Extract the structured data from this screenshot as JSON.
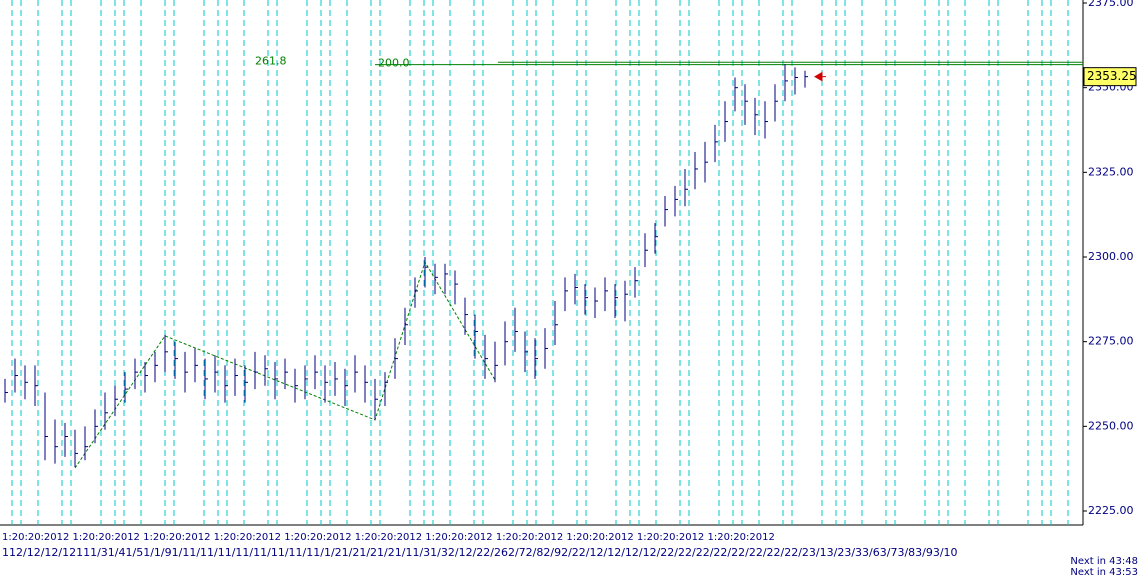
{
  "chart_data": {
    "type": "ohlc",
    "color": "#000080",
    "ylim": [
      2225,
      2375
    ],
    "yticks": [
      {
        "value": 2225,
        "label": "2225.00"
      },
      {
        "value": 2250,
        "label": "2250.00"
      },
      {
        "value": 2275,
        "label": "2275.00"
      },
      {
        "value": 2300,
        "label": "2300.00"
      },
      {
        "value": 2325,
        "label": "2325.00"
      },
      {
        "value": 2350,
        "label": "2350.00"
      },
      {
        "value": 2375,
        "label": "2375.00"
      }
    ],
    "close": [
      2260,
      2265,
      2263,
      2262,
      2247,
      2244,
      2247,
      2242,
      2244,
      2250,
      2254,
      2258,
      2261,
      2266,
      2265,
      2268,
      2272,
      2270,
      2266,
      2268,
      2264,
      2266,
      2262,
      2265,
      2263,
      2266,
      2267,
      2264,
      2266,
      2262,
      2264,
      2266,
      2263,
      2264,
      2262,
      2266,
      2263,
      2258,
      2263,
      2270,
      2280,
      2290,
      2297,
      2294,
      2295,
      2292,
      2283,
      2278,
      2270,
      2268,
      2275,
      2278,
      2272,
      2270,
      2273,
      2280,
      2290,
      2291,
      2288,
      2287,
      2290,
      2288,
      2289,
      2293,
      2302,
      2306,
      2314,
      2317,
      2320,
      2326,
      2328,
      2334,
      2340,
      2350,
      2346,
      2342,
      2340,
      2346,
      2352,
      2353,
      2353.25
    ],
    "high": [
      2264,
      2270,
      2268,
      2268,
      2260,
      2252,
      2251,
      2249,
      2250,
      2255,
      2260,
      2262,
      2266,
      2270,
      2269,
      2272,
      2277,
      2275,
      2272,
      2273,
      2270,
      2271,
      2268,
      2270,
      2268,
      2272,
      2271,
      2269,
      2270,
      2267,
      2268,
      2271,
      2268,
      2269,
      2267,
      2271,
      2268,
      2264,
      2266,
      2276,
      2285,
      2294,
      2300,
      2298,
      2298,
      2296,
      2288,
      2283,
      2277,
      2275,
      2281,
      2285,
      2278,
      2276,
      2279,
      2287,
      2294,
      2295,
      2292,
      2291,
      2294,
      2292,
      2293,
      2297,
      2307,
      2310,
      2318,
      2321,
      2326,
      2331,
      2334,
      2339,
      2346,
      2353,
      2351,
      2347,
      2346,
      2351,
      2357,
      2356,
      2355
    ],
    "low": [
      2257,
      2260,
      2258,
      2256,
      2240,
      2239,
      2241,
      2238,
      2240,
      2245,
      2249,
      2253,
      2257,
      2261,
      2260,
      2263,
      2266,
      2264,
      2260,
      2263,
      2258,
      2260,
      2257,
      2259,
      2257,
      2261,
      2262,
      2258,
      2261,
      2257,
      2258,
      2261,
      2257,
      2259,
      2256,
      2260,
      2257,
      2252,
      2256,
      2264,
      2274,
      2285,
      2291,
      2289,
      2289,
      2286,
      2277,
      2270,
      2264,
      2263,
      2268,
      2272,
      2266,
      2264,
      2267,
      2274,
      2284,
      2286,
      2283,
      2282,
      2284,
      2282,
      2281,
      2288,
      2297,
      2301,
      2309,
      2312,
      2315,
      2320,
      2322,
      2328,
      2334,
      2343,
      2339,
      2336,
      2335,
      2340,
      2346,
      2348,
      2350
    ],
    "zigzag": {
      "index": [
        7,
        16,
        37,
        42,
        49
      ],
      "values": [
        2237.7,
        2276.7,
        2251.9,
        2298.5,
        2263.7
      ]
    },
    "fib_levels": [
      {
        "label": "261.8",
        "value": 2357.5
      },
      {
        "label": "200.0",
        "value": 2356.8
      }
    ],
    "last_price": 2353.25,
    "x_axis_rows": [
      "1:20:20:2012  1:20:20:2012 1:20:20:2012 1:20:20:2012 1:20:20:2012 1:20:20:2012 1:20:20:2012 1:20:20:2012 1:20:20:2012 1:20:20:2012 1:20:20:2012",
      "112/12/12/12111/31/41/51/1/91/11/11/11/11/11/11/11/11/1/21/21/21/21/11/31/32/12/22/262/72/82/92/22/12/12/12/12/22/22/22/22/22/22/22/22/23/13/23/33/63/73/83/93/10"
    ],
    "countdown": [
      "Next in 43:48",
      "Next in 43:53"
    ]
  }
}
